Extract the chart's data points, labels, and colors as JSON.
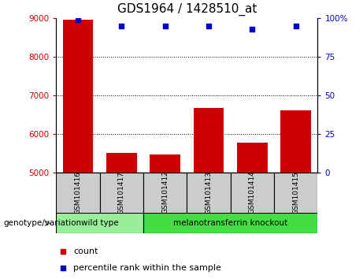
{
  "title": "GDS1964 / 1428510_at",
  "samples": [
    "GSM101416",
    "GSM101417",
    "GSM101412",
    "GSM101413",
    "GSM101414",
    "GSM101415"
  ],
  "counts": [
    8950,
    5520,
    5470,
    6680,
    5780,
    6620
  ],
  "percentile_ranks": [
    99,
    95,
    95,
    95,
    93,
    95
  ],
  "ylim_left": [
    5000,
    9000
  ],
  "ylim_right": [
    0,
    100
  ],
  "yticks_left": [
    5000,
    6000,
    7000,
    8000,
    9000
  ],
  "yticks_right": [
    0,
    25,
    50,
    75,
    100
  ],
  "bar_color": "#cc0000",
  "dot_color": "#0000cc",
  "title_fontsize": 11,
  "label_box_color": "#cccccc",
  "groups": [
    {
      "label": "wild type",
      "samples": [
        "GSM101416",
        "GSM101417"
      ],
      "color": "#99ee99"
    },
    {
      "label": "melanotransferrin knockout",
      "samples": [
        "GSM101412",
        "GSM101413",
        "GSM101414",
        "GSM101415"
      ],
      "color": "#44dd44"
    }
  ],
  "xlabel_group": "genotype/variation",
  "legend_count_label": "count",
  "legend_pct_label": "percentile rank within the sample"
}
